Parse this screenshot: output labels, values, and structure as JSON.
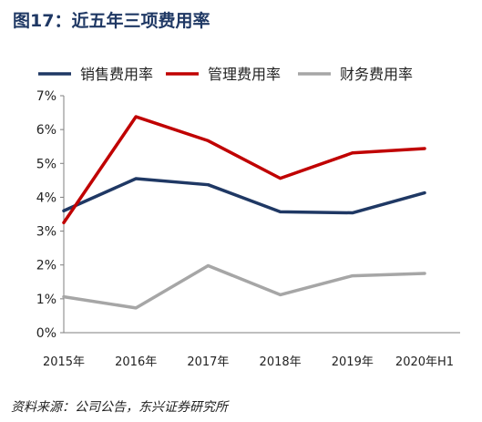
{
  "figure_title": "图17：近五年三项费用率",
  "source": "资料来源：公司公告，东兴证券研究所",
  "colors": {
    "title": "#1f3864",
    "axis": "#7f7f7f"
  },
  "chart_data": {
    "type": "line",
    "categories": [
      "2015年",
      "2016年",
      "2017年",
      "2018年",
      "2019年",
      "2020年H1"
    ],
    "series": [
      {
        "name": "销售费用率",
        "color": "#1f3864",
        "values": [
          3.6,
          4.55,
          4.37,
          3.57,
          3.54,
          4.13
        ]
      },
      {
        "name": "管理费用率",
        "color": "#c00000",
        "values": [
          3.25,
          6.38,
          5.67,
          4.56,
          5.31,
          5.44
        ]
      },
      {
        "name": "财务费用率",
        "color": "#a6a6a6",
        "values": [
          1.06,
          0.73,
          1.98,
          1.12,
          1.68,
          1.75
        ]
      }
    ],
    "ylim": [
      0,
      7
    ],
    "yticks": [
      "0%",
      "1%",
      "2%",
      "3%",
      "4%",
      "5%",
      "6%",
      "7%"
    ],
    "legend_position": "top",
    "grid": false
  }
}
